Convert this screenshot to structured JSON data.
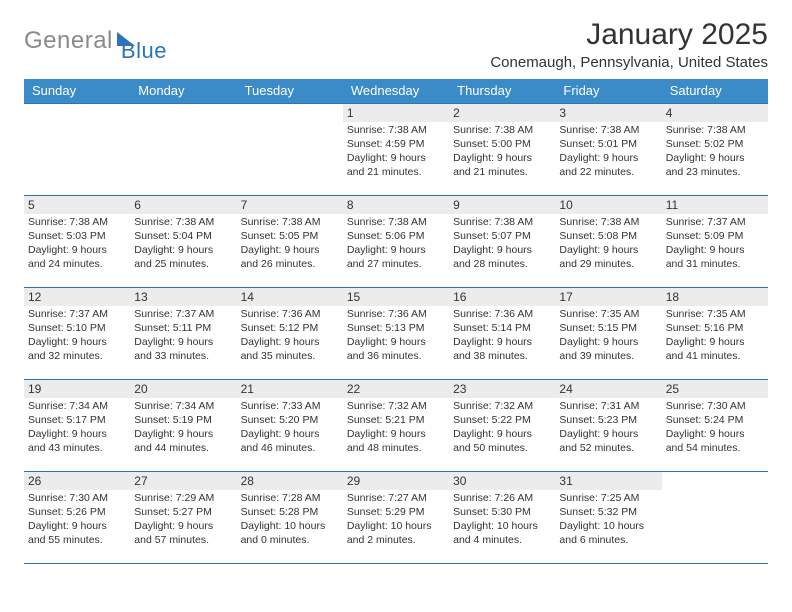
{
  "logo": {
    "part1": "General",
    "part2": "Blue"
  },
  "header": {
    "title": "January 2025",
    "location": "Conemaugh, Pennsylvania, United States"
  },
  "colors": {
    "header_bg": "#3b8bc9",
    "accent": "#2a74b8",
    "daynum_bg": "#ececec",
    "text": "#333333",
    "logo_gray": "#8a8a8a"
  },
  "days": [
    "Sunday",
    "Monday",
    "Tuesday",
    "Wednesday",
    "Thursday",
    "Friday",
    "Saturday"
  ],
  "weeks": [
    [
      {
        "n": "",
        "sr": "",
        "ss": "",
        "dl": ""
      },
      {
        "n": "",
        "sr": "",
        "ss": "",
        "dl": ""
      },
      {
        "n": "",
        "sr": "",
        "ss": "",
        "dl": ""
      },
      {
        "n": "1",
        "sr": "Sunrise: 7:38 AM",
        "ss": "Sunset: 4:59 PM",
        "dl": "Daylight: 9 hours and 21 minutes."
      },
      {
        "n": "2",
        "sr": "Sunrise: 7:38 AM",
        "ss": "Sunset: 5:00 PM",
        "dl": "Daylight: 9 hours and 21 minutes."
      },
      {
        "n": "3",
        "sr": "Sunrise: 7:38 AM",
        "ss": "Sunset: 5:01 PM",
        "dl": "Daylight: 9 hours and 22 minutes."
      },
      {
        "n": "4",
        "sr": "Sunrise: 7:38 AM",
        "ss": "Sunset: 5:02 PM",
        "dl": "Daylight: 9 hours and 23 minutes."
      }
    ],
    [
      {
        "n": "5",
        "sr": "Sunrise: 7:38 AM",
        "ss": "Sunset: 5:03 PM",
        "dl": "Daylight: 9 hours and 24 minutes."
      },
      {
        "n": "6",
        "sr": "Sunrise: 7:38 AM",
        "ss": "Sunset: 5:04 PM",
        "dl": "Daylight: 9 hours and 25 minutes."
      },
      {
        "n": "7",
        "sr": "Sunrise: 7:38 AM",
        "ss": "Sunset: 5:05 PM",
        "dl": "Daylight: 9 hours and 26 minutes."
      },
      {
        "n": "8",
        "sr": "Sunrise: 7:38 AM",
        "ss": "Sunset: 5:06 PM",
        "dl": "Daylight: 9 hours and 27 minutes."
      },
      {
        "n": "9",
        "sr": "Sunrise: 7:38 AM",
        "ss": "Sunset: 5:07 PM",
        "dl": "Daylight: 9 hours and 28 minutes."
      },
      {
        "n": "10",
        "sr": "Sunrise: 7:38 AM",
        "ss": "Sunset: 5:08 PM",
        "dl": "Daylight: 9 hours and 29 minutes."
      },
      {
        "n": "11",
        "sr": "Sunrise: 7:37 AM",
        "ss": "Sunset: 5:09 PM",
        "dl": "Daylight: 9 hours and 31 minutes."
      }
    ],
    [
      {
        "n": "12",
        "sr": "Sunrise: 7:37 AM",
        "ss": "Sunset: 5:10 PM",
        "dl": "Daylight: 9 hours and 32 minutes."
      },
      {
        "n": "13",
        "sr": "Sunrise: 7:37 AM",
        "ss": "Sunset: 5:11 PM",
        "dl": "Daylight: 9 hours and 33 minutes."
      },
      {
        "n": "14",
        "sr": "Sunrise: 7:36 AM",
        "ss": "Sunset: 5:12 PM",
        "dl": "Daylight: 9 hours and 35 minutes."
      },
      {
        "n": "15",
        "sr": "Sunrise: 7:36 AM",
        "ss": "Sunset: 5:13 PM",
        "dl": "Daylight: 9 hours and 36 minutes."
      },
      {
        "n": "16",
        "sr": "Sunrise: 7:36 AM",
        "ss": "Sunset: 5:14 PM",
        "dl": "Daylight: 9 hours and 38 minutes."
      },
      {
        "n": "17",
        "sr": "Sunrise: 7:35 AM",
        "ss": "Sunset: 5:15 PM",
        "dl": "Daylight: 9 hours and 39 minutes."
      },
      {
        "n": "18",
        "sr": "Sunrise: 7:35 AM",
        "ss": "Sunset: 5:16 PM",
        "dl": "Daylight: 9 hours and 41 minutes."
      }
    ],
    [
      {
        "n": "19",
        "sr": "Sunrise: 7:34 AM",
        "ss": "Sunset: 5:17 PM",
        "dl": "Daylight: 9 hours and 43 minutes."
      },
      {
        "n": "20",
        "sr": "Sunrise: 7:34 AM",
        "ss": "Sunset: 5:19 PM",
        "dl": "Daylight: 9 hours and 44 minutes."
      },
      {
        "n": "21",
        "sr": "Sunrise: 7:33 AM",
        "ss": "Sunset: 5:20 PM",
        "dl": "Daylight: 9 hours and 46 minutes."
      },
      {
        "n": "22",
        "sr": "Sunrise: 7:32 AM",
        "ss": "Sunset: 5:21 PM",
        "dl": "Daylight: 9 hours and 48 minutes."
      },
      {
        "n": "23",
        "sr": "Sunrise: 7:32 AM",
        "ss": "Sunset: 5:22 PM",
        "dl": "Daylight: 9 hours and 50 minutes."
      },
      {
        "n": "24",
        "sr": "Sunrise: 7:31 AM",
        "ss": "Sunset: 5:23 PM",
        "dl": "Daylight: 9 hours and 52 minutes."
      },
      {
        "n": "25",
        "sr": "Sunrise: 7:30 AM",
        "ss": "Sunset: 5:24 PM",
        "dl": "Daylight: 9 hours and 54 minutes."
      }
    ],
    [
      {
        "n": "26",
        "sr": "Sunrise: 7:30 AM",
        "ss": "Sunset: 5:26 PM",
        "dl": "Daylight: 9 hours and 55 minutes."
      },
      {
        "n": "27",
        "sr": "Sunrise: 7:29 AM",
        "ss": "Sunset: 5:27 PM",
        "dl": "Daylight: 9 hours and 57 minutes."
      },
      {
        "n": "28",
        "sr": "Sunrise: 7:28 AM",
        "ss": "Sunset: 5:28 PM",
        "dl": "Daylight: 10 hours and 0 minutes."
      },
      {
        "n": "29",
        "sr": "Sunrise: 7:27 AM",
        "ss": "Sunset: 5:29 PM",
        "dl": "Daylight: 10 hours and 2 minutes."
      },
      {
        "n": "30",
        "sr": "Sunrise: 7:26 AM",
        "ss": "Sunset: 5:30 PM",
        "dl": "Daylight: 10 hours and 4 minutes."
      },
      {
        "n": "31",
        "sr": "Sunrise: 7:25 AM",
        "ss": "Sunset: 5:32 PM",
        "dl": "Daylight: 10 hours and 6 minutes."
      },
      {
        "n": "",
        "sr": "",
        "ss": "",
        "dl": ""
      }
    ]
  ]
}
